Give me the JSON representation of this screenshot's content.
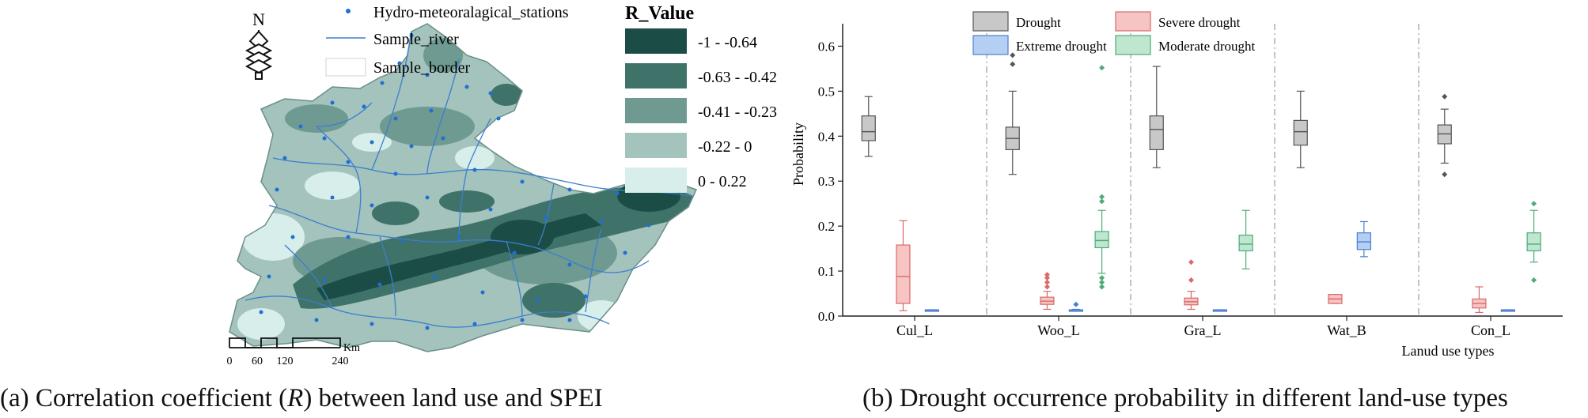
{
  "panel_a": {
    "caption_pre": "(a) Correlation coefficient (",
    "caption_var": "R",
    "caption_post": ") between land use and SPEI",
    "north_label": "N",
    "legend": {
      "stations": "Hydro-meteoralagical_stations",
      "river": "Sample_river",
      "border": "Sample_border"
    },
    "r_legend": {
      "title": "R_Value",
      "classes": [
        {
          "label": "-1 - -0.64",
          "color": "#1b4d46"
        },
        {
          "label": "-0.63 - -0.42",
          "color": "#3f7269"
        },
        {
          "label": "-0.41 - -0.23",
          "color": "#6e9a91"
        },
        {
          "label": "-0.22 - 0",
          "color": "#a3c3bc"
        },
        {
          "label": "0 - 0.22",
          "color": "#d8eeea"
        }
      ]
    },
    "scale_bar": {
      "unit": "Km",
      "ticks": [
        "0",
        "60",
        "120",
        "240"
      ]
    },
    "colors": {
      "river": "#3b7fd0",
      "station": "#1f6fd6"
    }
  },
  "panel_b": {
    "caption": "(b) Drought occurrence probability in different land-use types",
    "chart_data": {
      "type": "box",
      "xlabel": "Lanud use types",
      "ylabel": "Probability",
      "ylim": [
        0,
        0.65
      ],
      "yticks": [
        "0.0",
        "0.1",
        "0.2",
        "0.3",
        "0.4",
        "0.5",
        "0.6"
      ],
      "categories": [
        "Cul_L",
        "Woo_L",
        "Gra_L",
        "Wat_B",
        "Con_L"
      ],
      "legend_placement": "top",
      "series": [
        {
          "name": "Drought",
          "fill": "#c8c8c8",
          "stroke": "#555555",
          "boxes": [
            {
              "whisker_low": 0.355,
              "q1": 0.39,
              "median": 0.41,
              "q3": 0.445,
              "whisker_high": 0.488,
              "outliers": []
            },
            {
              "whisker_low": 0.315,
              "q1": 0.37,
              "median": 0.395,
              "q3": 0.42,
              "whisker_high": 0.5,
              "outliers": [
                0.56,
                0.58
              ]
            },
            {
              "whisker_low": 0.33,
              "q1": 0.37,
              "median": 0.415,
              "q3": 0.445,
              "whisker_high": 0.555,
              "outliers": []
            },
            {
              "whisker_low": 0.33,
              "q1": 0.38,
              "median": 0.41,
              "q3": 0.435,
              "whisker_high": 0.5,
              "outliers": []
            },
            {
              "whisker_low": 0.34,
              "q1": 0.383,
              "median": 0.405,
              "q3": 0.425,
              "whisker_high": 0.46,
              "outliers": [
                0.315,
                0.488
              ]
            }
          ]
        },
        {
          "name": "Severe drought",
          "fill": "#f7c4c4",
          "stroke": "#d96a6a",
          "boxes": [
            {
              "whisker_low": 0.012,
              "q1": 0.028,
              "median": 0.088,
              "q3": 0.158,
              "whisker_high": 0.212,
              "outliers": []
            },
            {
              "whisker_low": 0.015,
              "q1": 0.026,
              "median": 0.033,
              "q3": 0.042,
              "whisker_high": 0.055,
              "outliers": [
                0.065,
                0.075,
                0.085,
                0.092
              ]
            },
            {
              "whisker_low": 0.015,
              "q1": 0.025,
              "median": 0.032,
              "q3": 0.04,
              "whisker_high": 0.055,
              "outliers": [
                0.08,
                0.12
              ]
            },
            {
              "whisker_low": 0.028,
              "q1": 0.028,
              "median": 0.038,
              "q3": 0.048,
              "whisker_high": 0.048,
              "outliers": []
            },
            {
              "whisker_low": 0.008,
              "q1": 0.018,
              "median": 0.028,
              "q3": 0.038,
              "whisker_high": 0.065,
              "outliers": []
            }
          ]
        },
        {
          "name": "Extreme drought",
          "fill": "#b5cff2",
          "stroke": "#4a7fd0",
          "boxes": [
            {
              "whisker_low": 0.012,
              "q1": 0.012,
              "median": 0.013,
              "q3": 0.014,
              "whisker_high": 0.014,
              "outliers": []
            },
            {
              "whisker_low": 0.011,
              "q1": 0.012,
              "median": 0.013,
              "q3": 0.014,
              "whisker_high": 0.015,
              "outliers": [
                0.026
              ]
            },
            {
              "whisker_low": 0.012,
              "q1": 0.012,
              "median": 0.013,
              "q3": 0.014,
              "whisker_high": 0.014,
              "outliers": []
            },
            {
              "whisker_low": 0.132,
              "q1": 0.148,
              "median": 0.165,
              "q3": 0.185,
              "whisker_high": 0.21,
              "outliers": []
            },
            {
              "whisker_low": 0.012,
              "q1": 0.012,
              "median": 0.013,
              "q3": 0.014,
              "whisker_high": 0.014,
              "outliers": []
            }
          ]
        },
        {
          "name": "Moderate drought",
          "fill": "#bfe6cf",
          "stroke": "#4cab78",
          "boxes": [
            {
              "whisker_low": null,
              "q1": null,
              "median": null,
              "q3": null,
              "whisker_high": null,
              "outliers": []
            },
            {
              "whisker_low": 0.095,
              "q1": 0.152,
              "median": 0.168,
              "q3": 0.188,
              "whisker_high": 0.235,
              "outliers": [
                0.065,
                0.075,
                0.085,
                0.255,
                0.265,
                0.552
              ]
            },
            {
              "whisker_low": 0.105,
              "q1": 0.145,
              "median": 0.16,
              "q3": 0.18,
              "whisker_high": 0.235,
              "outliers": []
            },
            {
              "whisker_low": null,
              "q1": null,
              "median": null,
              "q3": null,
              "whisker_high": null,
              "outliers": []
            },
            {
              "whisker_low": 0.12,
              "q1": 0.145,
              "median": 0.16,
              "q3": 0.185,
              "whisker_high": 0.235,
              "outliers": [
                0.08,
                0.25
              ]
            }
          ]
        }
      ],
      "legend_order": [
        "Drought",
        "Severe drought",
        "Extreme drought",
        "Moderate drought"
      ]
    }
  }
}
